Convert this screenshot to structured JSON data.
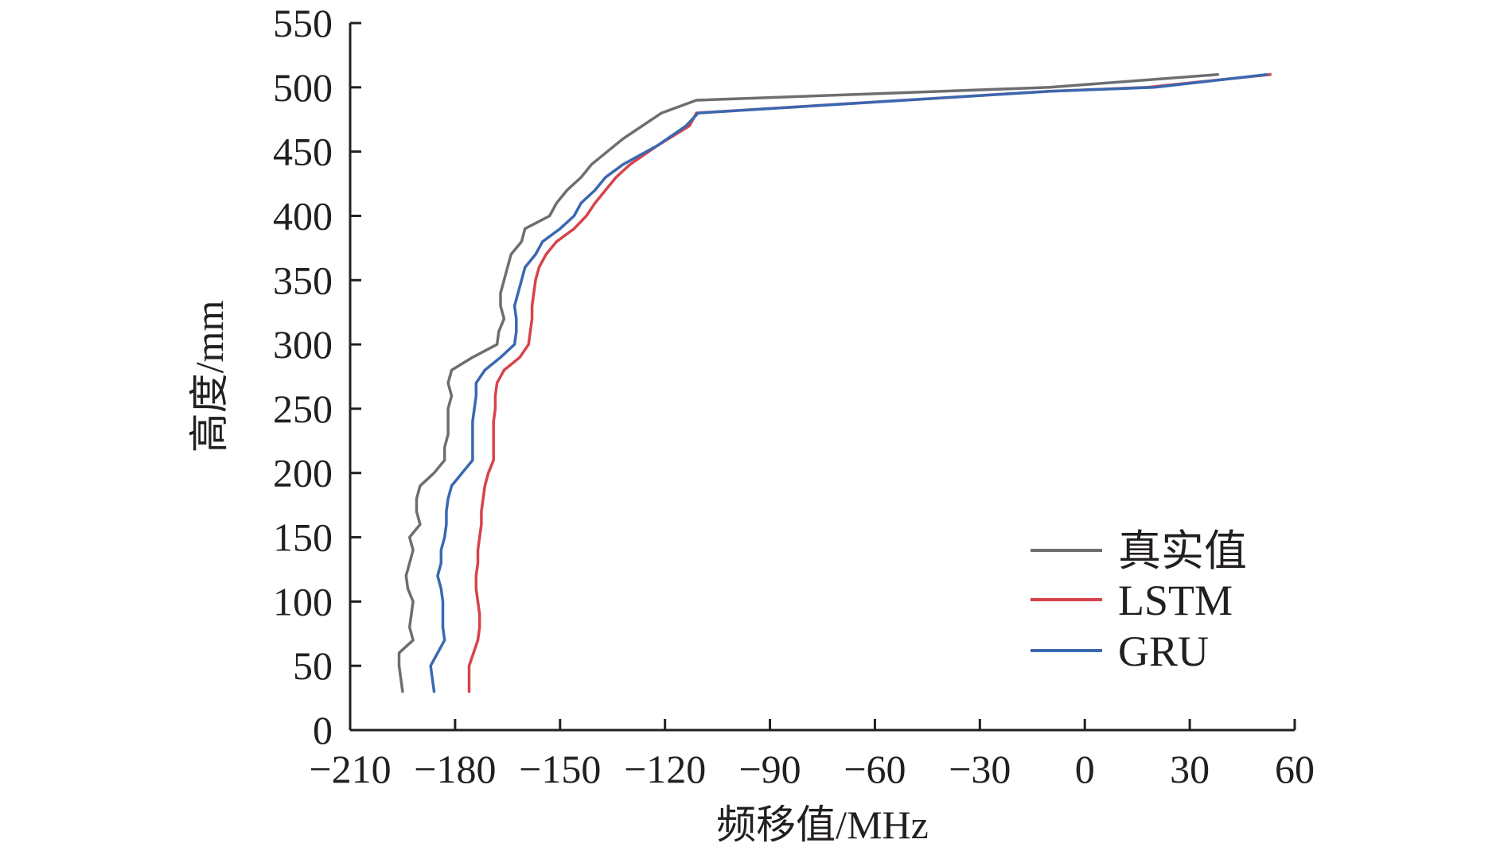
{
  "chart_data": {
    "type": "line",
    "title": "",
    "xlabel": "频移值/MHz",
    "ylabel": "高度/mm",
    "xlim": [
      -210,
      60
    ],
    "ylim": [
      0,
      550
    ],
    "xticks": [
      -210,
      -180,
      -150,
      -120,
      -90,
      -60,
      -30,
      0,
      30,
      60
    ],
    "yticks": [
      0,
      50,
      100,
      150,
      200,
      250,
      300,
      350,
      400,
      450,
      500,
      550
    ],
    "xtick_labels": [
      "−210",
      "−180",
      "−150",
      "−120",
      "−90",
      "−60",
      "−30",
      "0",
      "30",
      "60"
    ],
    "ytick_labels": [
      "0",
      "50",
      "100",
      "150",
      "200",
      "250",
      "300",
      "350",
      "400",
      "450",
      "500",
      "550"
    ],
    "grid": false,
    "legend_position": "bottom-right",
    "series": [
      {
        "name": "真实值",
        "color": "#6d6e71",
        "points": [
          [
            -195.0,
            30
          ],
          [
            -195.5,
            40
          ],
          [
            -196.0,
            50
          ],
          [
            -196.0,
            60
          ],
          [
            -192.0,
            70
          ],
          [
            -193.0,
            80
          ],
          [
            -192.5,
            90
          ],
          [
            -192.0,
            100
          ],
          [
            -193.5,
            110
          ],
          [
            -194.0,
            120
          ],
          [
            -193.0,
            130
          ],
          [
            -192.0,
            140
          ],
          [
            -193.0,
            150
          ],
          [
            -190.0,
            160
          ],
          [
            -191.0,
            170
          ],
          [
            -191.0,
            180
          ],
          [
            -190.0,
            190
          ],
          [
            -186.0,
            200
          ],
          [
            -183.0,
            210
          ],
          [
            -183.0,
            220
          ],
          [
            -182.0,
            230
          ],
          [
            -182.0,
            240
          ],
          [
            -182.0,
            250
          ],
          [
            -181.0,
            260
          ],
          [
            -182.0,
            270
          ],
          [
            -181.0,
            280
          ],
          [
            -175.0,
            290
          ],
          [
            -168.0,
            300
          ],
          [
            -167.5,
            310
          ],
          [
            -166.0,
            320
          ],
          [
            -167.0,
            330
          ],
          [
            -167.0,
            340
          ],
          [
            -166.0,
            350
          ],
          [
            -165.0,
            360
          ],
          [
            -164.0,
            370
          ],
          [
            -161.0,
            380
          ],
          [
            -160.0,
            390
          ],
          [
            -153.0,
            400
          ],
          [
            -151.0,
            410
          ],
          [
            -148.0,
            420
          ],
          [
            -144.0,
            430
          ],
          [
            -141.0,
            440
          ],
          [
            -132.0,
            460
          ],
          [
            -121.0,
            480
          ],
          [
            -111.0,
            490
          ],
          [
            -10.0,
            500
          ],
          [
            38.0,
            510
          ]
        ]
      },
      {
        "name": "LSTM",
        "color": "#d7434b",
        "points": [
          [
            -176.0,
            30
          ],
          [
            -176.0,
            40
          ],
          [
            -176.0,
            50
          ],
          [
            -173.5,
            70
          ],
          [
            -173.0,
            80
          ],
          [
            -173.0,
            90
          ],
          [
            -173.5,
            100
          ],
          [
            -174.0,
            110
          ],
          [
            -174.0,
            120
          ],
          [
            -173.5,
            130
          ],
          [
            -173.5,
            140
          ],
          [
            -173.0,
            150
          ],
          [
            -172.5,
            160
          ],
          [
            -172.5,
            170
          ],
          [
            -172.0,
            180
          ],
          [
            -171.5,
            190
          ],
          [
            -170.5,
            200
          ],
          [
            -169.0,
            210
          ],
          [
            -169.0,
            220
          ],
          [
            -169.0,
            240
          ],
          [
            -168.5,
            250
          ],
          [
            -168.5,
            260
          ],
          [
            -168.0,
            270
          ],
          [
            -166.0,
            280
          ],
          [
            -161.5,
            290
          ],
          [
            -159.0,
            300
          ],
          [
            -158.5,
            310
          ],
          [
            -158.0,
            320
          ],
          [
            -158.0,
            330
          ],
          [
            -157.0,
            350
          ],
          [
            -156.0,
            360
          ],
          [
            -154.0,
            370
          ],
          [
            -151.0,
            380
          ],
          [
            -146.0,
            390
          ],
          [
            -142.5,
            400
          ],
          [
            -140.0,
            410
          ],
          [
            -137.0,
            420
          ],
          [
            -134.0,
            430
          ],
          [
            -130.0,
            440
          ],
          [
            -122.0,
            455
          ],
          [
            -113.0,
            470
          ],
          [
            -111.0,
            480
          ],
          [
            -10.0,
            497
          ],
          [
            18.0,
            500
          ],
          [
            53.0,
            510
          ]
        ]
      },
      {
        "name": "GRU",
        "color": "#3a68b0",
        "points": [
          [
            -186.0,
            30
          ],
          [
            -186.5,
            40
          ],
          [
            -187.0,
            50
          ],
          [
            -183.0,
            70
          ],
          [
            -183.5,
            80
          ],
          [
            -183.5,
            90
          ],
          [
            -183.5,
            100
          ],
          [
            -184.0,
            110
          ],
          [
            -185.0,
            120
          ],
          [
            -184.0,
            130
          ],
          [
            -184.0,
            140
          ],
          [
            -183.0,
            150
          ],
          [
            -182.5,
            160
          ],
          [
            -182.5,
            170
          ],
          [
            -182.0,
            180
          ],
          [
            -181.0,
            190
          ],
          [
            -178.0,
            200
          ],
          [
            -175.0,
            210
          ],
          [
            -175.0,
            220
          ],
          [
            -175.0,
            240
          ],
          [
            -174.5,
            250
          ],
          [
            -174.0,
            260
          ],
          [
            -174.0,
            270
          ],
          [
            -171.5,
            280
          ],
          [
            -167.0,
            290
          ],
          [
            -163.0,
            300
          ],
          [
            -162.5,
            310
          ],
          [
            -162.5,
            320
          ],
          [
            -163.0,
            330
          ],
          [
            -162.0,
            340
          ],
          [
            -161.0,
            350
          ],
          [
            -160.0,
            360
          ],
          [
            -157.0,
            370
          ],
          [
            -155.0,
            380
          ],
          [
            -150.0,
            390
          ],
          [
            -146.0,
            400
          ],
          [
            -144.0,
            410
          ],
          [
            -140.0,
            420
          ],
          [
            -137.0,
            430
          ],
          [
            -132.0,
            440
          ],
          [
            -122.0,
            455
          ],
          [
            -114.0,
            470
          ],
          [
            -110.5,
            480
          ],
          [
            -10.0,
            497
          ],
          [
            20.0,
            500
          ],
          [
            52.0,
            510
          ]
        ]
      }
    ]
  }
}
